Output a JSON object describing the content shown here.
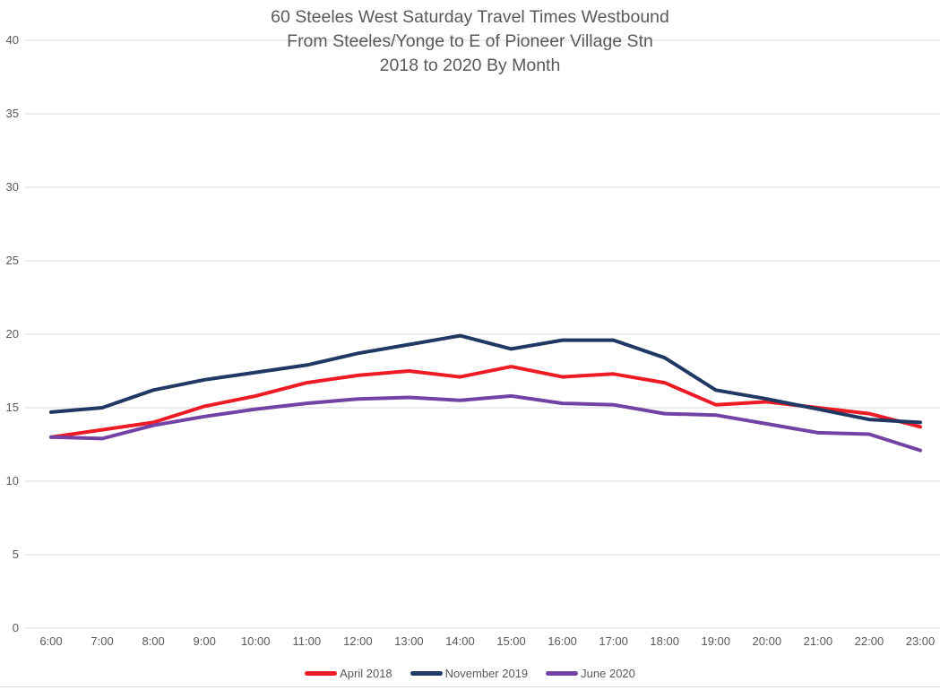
{
  "chart_data": {
    "type": "line",
    "title_lines": [
      "60 Steeles West Saturday Travel Times Westbound",
      "From Steeles/Yonge to E of Pioneer Village Stn",
      "2018 to 2020 By Month"
    ],
    "xlabel": "",
    "ylabel": "",
    "categories": [
      "6:00",
      "7:00",
      "8:00",
      "9:00",
      "10:00",
      "11:00",
      "12:00",
      "13:00",
      "14:00",
      "15:00",
      "16:00",
      "17:00",
      "18:00",
      "19:00",
      "20:00",
      "21:00",
      "22:00",
      "23:00"
    ],
    "series": [
      {
        "name": "April 2018",
        "color": "#ed1b24",
        "values": [
          13.0,
          13.5,
          14.0,
          15.1,
          15.8,
          16.7,
          17.2,
          17.5,
          17.1,
          17.8,
          17.1,
          17.3,
          16.7,
          15.2,
          15.4,
          15.0,
          14.6,
          13.7
        ]
      },
      {
        "name": "November 2019",
        "color": "#1f3864",
        "values": [
          14.7,
          15.0,
          16.2,
          16.9,
          17.4,
          17.9,
          18.7,
          19.3,
          19.9,
          19.0,
          19.6,
          19.6,
          18.4,
          16.2,
          15.6,
          14.9,
          14.2,
          14.0
        ]
      },
      {
        "name": "June 2020",
        "color": "#7342a5",
        "values": [
          13.0,
          12.9,
          13.8,
          14.4,
          14.9,
          15.3,
          15.6,
          15.7,
          15.5,
          15.8,
          15.3,
          15.2,
          14.6,
          14.5,
          13.9,
          13.3,
          13.2,
          12.1
        ]
      }
    ],
    "ylim": [
      0,
      40
    ],
    "yticks": [
      0,
      5,
      10,
      15,
      20,
      25,
      30,
      35,
      40
    ],
    "grid": true,
    "legend_position": "bottom"
  },
  "style": {
    "grid_color": "#d9d9d9",
    "text_color": "#595959",
    "background": "#ffffff"
  }
}
